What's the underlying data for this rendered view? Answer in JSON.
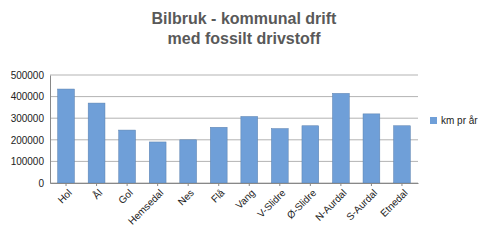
{
  "chart_data": {
    "type": "bar",
    "title": "Bilbruk - kommunal drift",
    "subtitle": "med fossilt drivstoff",
    "categories": [
      "Hol",
      "Ål",
      "Gol",
      "Hemsedal",
      "Nes",
      "Flå",
      "Vang",
      "V-Slidre",
      "Ø-Slidre",
      "N-Aurdal",
      "S-Aurdal",
      "Etnedal"
    ],
    "series": [
      {
        "name": "km pr år",
        "color": "#6f9fd8",
        "values": [
          435000,
          370000,
          245000,
          190000,
          200000,
          258000,
          308000,
          252000,
          265000,
          415000,
          320000,
          265000
        ]
      }
    ],
    "ylim": [
      0,
      500000
    ],
    "yticks": [
      0,
      100000,
      200000,
      300000,
      400000,
      500000
    ],
    "grid": true,
    "legend": "right"
  }
}
